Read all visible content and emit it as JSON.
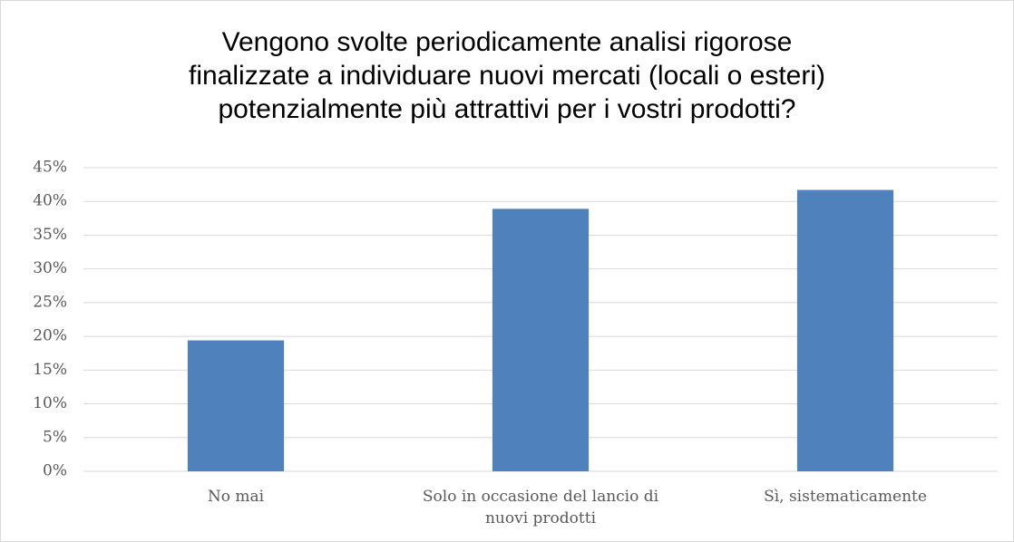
{
  "chart_data": {
    "type": "bar",
    "title": [
      "Vengono svolte periodicamente analisi rigorose",
      "finalizzate a individuare nuovi mercati (locali o esteri)",
      "potenzialmente più attrattivi per i vostri prodotti?"
    ],
    "categories": [
      "No mai",
      "Solo in occasione del lancio di nuovi prodotti",
      "Sì, sistematicamente"
    ],
    "values": [
      19.4,
      38.9,
      41.7
    ],
    "color": "#4f81bd",
    "ylim": [
      0,
      45
    ],
    "yticks": [
      {
        "value": 0,
        "label": "0%"
      },
      {
        "value": 5,
        "label": "5%"
      },
      {
        "value": 10,
        "label": "10%"
      },
      {
        "value": 15,
        "label": "15%"
      },
      {
        "value": 20,
        "label": "20%"
      },
      {
        "value": 25,
        "label": "25%"
      },
      {
        "value": 30,
        "label": "30%"
      },
      {
        "value": 35,
        "label": "35%"
      },
      {
        "value": 40,
        "label": "40%"
      },
      {
        "value": 45,
        "label": "45%"
      }
    ],
    "grid": true
  }
}
